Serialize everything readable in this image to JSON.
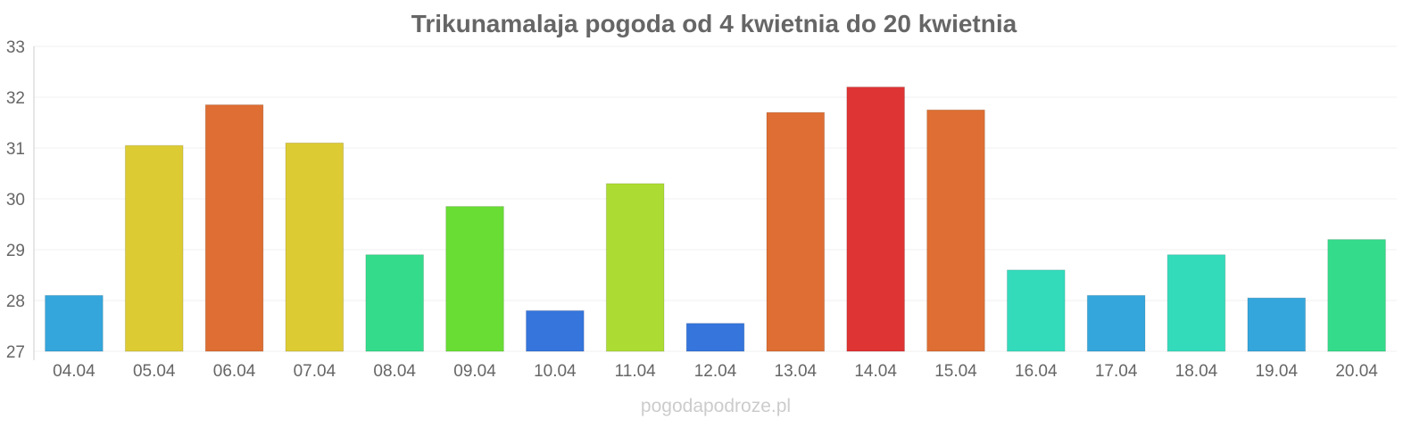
{
  "chart_data": {
    "type": "bar",
    "title": "Trikunamalaja pogoda od 4 kwietnia do 20 kwietnia",
    "xlabel": "",
    "ylabel": "",
    "ylim": [
      27,
      33
    ],
    "y_ticks": [
      "27",
      "28",
      "29",
      "30",
      "31",
      "32",
      "33"
    ],
    "grid": true,
    "categories": [
      "04.04",
      "05.04",
      "06.04",
      "07.04",
      "08.04",
      "09.04",
      "10.04",
      "11.04",
      "12.04",
      "13.04",
      "14.04",
      "15.04",
      "16.04",
      "17.04",
      "18.04",
      "19.04",
      "20.04"
    ],
    "values": [
      28.1,
      31.05,
      31.85,
      31.1,
      28.9,
      29.85,
      27.8,
      30.3,
      27.55,
      31.7,
      32.2,
      31.75,
      28.6,
      28.1,
      28.9,
      28.05,
      29.2
    ],
    "colors": [
      "#34a6dc",
      "#dccb33",
      "#de6e33",
      "#dccb33",
      "#34db8a",
      "#69dd34",
      "#3575dc",
      "#acdc33",
      "#3575dc",
      "#de6e33",
      "#de3434",
      "#de6e33",
      "#33dbbb",
      "#34a6dc",
      "#33dbbb",
      "#34a6dc",
      "#34db8a"
    ]
  },
  "footer": {
    "source": "pogodapodroze.pl"
  }
}
